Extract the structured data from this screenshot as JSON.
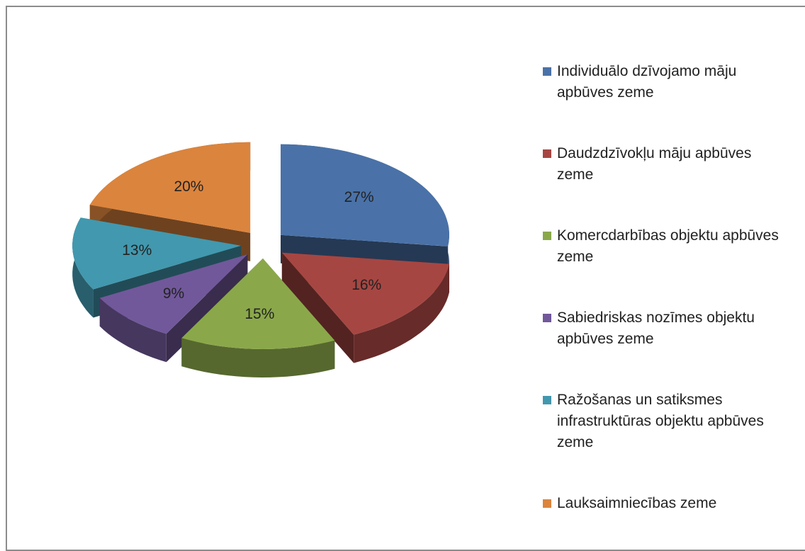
{
  "chart_data": {
    "type": "pie",
    "categories": [
      "Individuālo dzīvojamo māju apbūves zeme",
      "Daudzdzīvokļu māju apbūves zeme",
      "Komercdarbības objektu apbūves zeme",
      "Sabiedriskas nozīmes objektu apbūves zeme",
      "Ražošanas un satiksmes infrastruktūras objektu apbūves zeme",
      "Lauksaimniecības zeme"
    ],
    "values": [
      27,
      16,
      15,
      9,
      13,
      20
    ],
    "value_labels": [
      "27%",
      "16%",
      "15%",
      "9%",
      "13%",
      "20%"
    ],
    "colors": [
      "#4a72a8",
      "#a64642",
      "#8aa84a",
      "#71589a",
      "#4298ae",
      "#db843d"
    ],
    "legend": "right"
  }
}
